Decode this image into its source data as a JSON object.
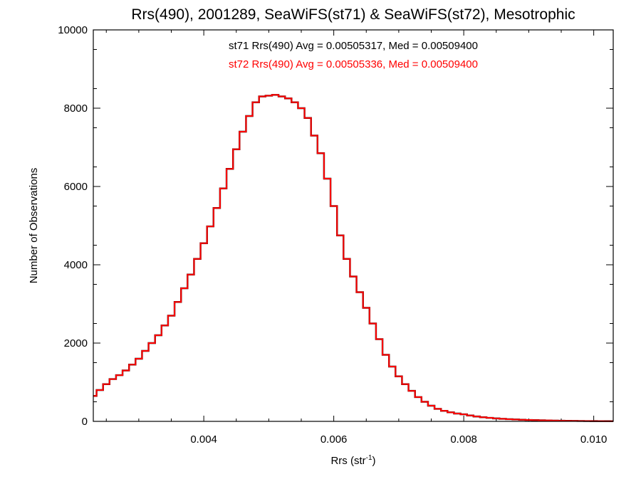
{
  "chart_data": {
    "type": "line",
    "title": "Rrs(490), 2001289, SeaWiFS(st71) & SeaWiFS(st72), Mesotrophic",
    "xlabel_base": "Rrs (str",
    "xlabel_sup": "-1",
    "xlabel_close": ")",
    "ylabel": "Number of Observations",
    "xlim": [
      0.0023,
      0.0103
    ],
    "ylim": [
      0,
      10000
    ],
    "xticks": [
      0.004,
      0.006,
      0.008,
      0.01
    ],
    "xtick_labels": [
      "0.004",
      "0.006",
      "0.008",
      "0.010"
    ],
    "yticks": [
      0,
      2000,
      4000,
      6000,
      8000,
      10000
    ],
    "ytick_labels": [
      "0",
      "2000",
      "4000",
      "6000",
      "8000",
      "10000"
    ],
    "grid": false,
    "annotations": [
      {
        "text": "st71 Rrs(490) Avg = 0.00505317, Med = 0.00509400",
        "color": "#000000"
      },
      {
        "text": "st72 Rrs(490) Avg = 0.00505336, Med = 0.00509400",
        "color": "#ff0000"
      }
    ],
    "series": [
      {
        "color": "#000000",
        "x": [
          0.0023,
          0.0024,
          0.0025,
          0.0026,
          0.0027,
          0.0028,
          0.0029,
          0.003,
          0.0031,
          0.0032,
          0.0033,
          0.0034,
          0.0035,
          0.0036,
          0.0037,
          0.0038,
          0.0039,
          0.004,
          0.0041,
          0.0042,
          0.0043,
          0.0044,
          0.0045,
          0.0046,
          0.0047,
          0.0048,
          0.0049,
          0.005,
          0.0051,
          0.0052,
          0.0053,
          0.0054,
          0.0055,
          0.0056,
          0.0057,
          0.0058,
          0.0059,
          0.006,
          0.0061,
          0.0062,
          0.0063,
          0.0064,
          0.0065,
          0.0066,
          0.0067,
          0.0068,
          0.0069,
          0.007,
          0.0071,
          0.0072,
          0.0073,
          0.0074,
          0.0075,
          0.0076,
          0.0077,
          0.0078,
          0.0079,
          0.008,
          0.0081,
          0.0082,
          0.0083,
          0.0084,
          0.0085,
          0.0086,
          0.0087,
          0.0088,
          0.0089,
          0.009,
          0.0091,
          0.0092,
          0.0093,
          0.0094,
          0.0095,
          0.0096,
          0.0097,
          0.0098,
          0.0099,
          0.01,
          0.0101,
          0.0102,
          0.0103
        ],
        "y": [
          650,
          800,
          950,
          1080,
          1180,
          1300,
          1450,
          1600,
          1800,
          2000,
          2200,
          2450,
          2700,
          3050,
          3400,
          3750,
          4150,
          4550,
          4980,
          5450,
          5950,
          6450,
          6950,
          7400,
          7800,
          8150,
          8300,
          8320,
          8340,
          8300,
          8250,
          8150,
          8000,
          7750,
          7300,
          6850,
          6200,
          5500,
          4750,
          4150,
          3700,
          3300,
          2900,
          2500,
          2100,
          1700,
          1400,
          1150,
          950,
          780,
          620,
          500,
          400,
          320,
          270,
          230,
          200,
          180,
          150,
          125,
          105,
          90,
          75,
          65,
          55,
          48,
          42,
          36,
          32,
          28,
          24,
          20,
          17,
          14,
          12,
          10,
          8,
          7,
          6,
          5,
          4
        ]
      },
      {
        "color": "#ff0000",
        "x": [
          0.0023,
          0.0024,
          0.0025,
          0.0026,
          0.0027,
          0.0028,
          0.0029,
          0.003,
          0.0031,
          0.0032,
          0.0033,
          0.0034,
          0.0035,
          0.0036,
          0.0037,
          0.0038,
          0.0039,
          0.004,
          0.0041,
          0.0042,
          0.0043,
          0.0044,
          0.0045,
          0.0046,
          0.0047,
          0.0048,
          0.0049,
          0.005,
          0.0051,
          0.0052,
          0.0053,
          0.0054,
          0.0055,
          0.0056,
          0.0057,
          0.0058,
          0.0059,
          0.006,
          0.0061,
          0.0062,
          0.0063,
          0.0064,
          0.0065,
          0.0066,
          0.0067,
          0.0068,
          0.0069,
          0.007,
          0.0071,
          0.0072,
          0.0073,
          0.0074,
          0.0075,
          0.0076,
          0.0077,
          0.0078,
          0.0079,
          0.008,
          0.0081,
          0.0082,
          0.0083,
          0.0084,
          0.0085,
          0.0086,
          0.0087,
          0.0088,
          0.0089,
          0.009,
          0.0091,
          0.0092,
          0.0093,
          0.0094,
          0.0095,
          0.0096,
          0.0097,
          0.0098,
          0.0099,
          0.01,
          0.0101,
          0.0102,
          0.0103
        ],
        "y": [
          650,
          800,
          950,
          1080,
          1180,
          1300,
          1450,
          1600,
          1800,
          2000,
          2200,
          2450,
          2700,
          3050,
          3400,
          3750,
          4150,
          4550,
          4980,
          5450,
          5950,
          6450,
          6950,
          7400,
          7800,
          8150,
          8300,
          8320,
          8340,
          8300,
          8250,
          8150,
          8000,
          7750,
          7300,
          6850,
          6200,
          5500,
          4750,
          4150,
          3700,
          3300,
          2900,
          2500,
          2100,
          1700,
          1400,
          1150,
          950,
          780,
          620,
          500,
          400,
          320,
          270,
          230,
          200,
          180,
          150,
          125,
          105,
          90,
          75,
          65,
          55,
          48,
          42,
          36,
          32,
          28,
          24,
          20,
          17,
          14,
          12,
          10,
          8,
          7,
          6,
          5,
          4
        ]
      }
    ]
  }
}
